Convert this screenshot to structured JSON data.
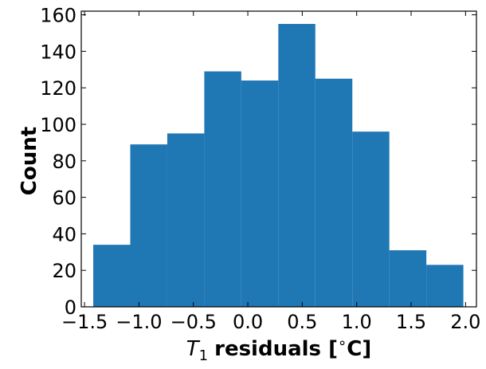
{
  "chart_data": {
    "type": "bar",
    "title": "",
    "xlabel": "T1 residuals [°C]",
    "xlabel_parts": {
      "symbol": "T",
      "subscript": "1",
      "rest": "residuals [",
      "degree": "∘",
      "unit": "C]"
    },
    "ylabel": "Count",
    "bin_edges": [
      -1.42,
      -1.08,
      -0.74,
      -0.4,
      -0.06,
      0.28,
      0.62,
      0.96,
      1.3,
      1.64,
      1.98
    ],
    "values": [
      34,
      89,
      95,
      129,
      124,
      155,
      125,
      96,
      31,
      23
    ],
    "xlim": [
      -1.53,
      2.1
    ],
    "ylim": [
      0,
      162
    ],
    "xticks": [
      -1.5,
      -1.0,
      -0.5,
      0.0,
      0.5,
      1.0,
      1.5,
      2.0
    ],
    "xtick_labels": [
      "−1.5",
      "−1.0",
      "−0.5",
      "0.0",
      "0.5",
      "1.0",
      "1.5",
      "2.0"
    ],
    "yticks": [
      0,
      20,
      40,
      60,
      80,
      100,
      120,
      140,
      160
    ],
    "ytick_labels": [
      "0",
      "20",
      "40",
      "60",
      "80",
      "100",
      "120",
      "140",
      "160"
    ],
    "bar_color": "#1f77b4",
    "grid": false,
    "legend": "none"
  }
}
